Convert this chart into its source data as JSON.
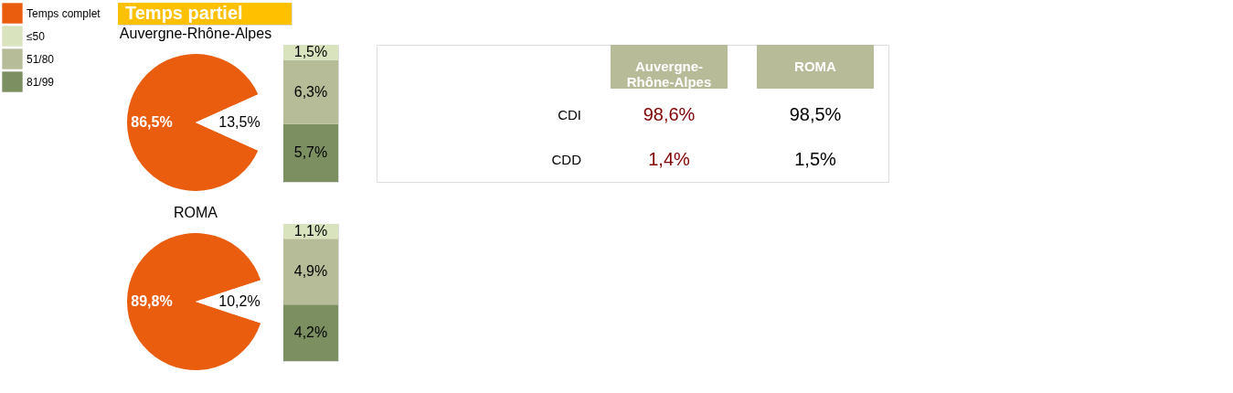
{
  "chart_data": [
    {
      "type": "pie",
      "title": "Auvergne-Rhône-Alpes",
      "annotations": [
        "Temps partiel"
      ],
      "categories": [
        "Temps complet",
        null
      ],
      "values": [
        86.5,
        13.5
      ],
      "colors": [
        "#ea5c0e",
        "#ffffff"
      ],
      "value_labels": [
        "86,5%",
        "13,5%"
      ],
      "legend": "left"
    },
    {
      "type": "bar",
      "stacked": true,
      "categories": [
        null
      ],
      "legend": "left",
      "series": [
        {
          "name": "81/99",
          "color": "#7b8f60",
          "values": [
            5.7
          ],
          "value_labels": [
            "5,7%"
          ]
        },
        {
          "name": "51/80",
          "color": "#b6bc98",
          "values": [
            6.3
          ],
          "value_labels": [
            "6,3%"
          ]
        },
        {
          "name": "≤50",
          "color": "#d9e4bf",
          "values": [
            1.5
          ],
          "value_labels": [
            "1,5%"
          ]
        }
      ]
    },
    {
      "type": "heatmap",
      "categories": [
        "Auvergne-Rhône-Alpes",
        "ROMA"
      ],
      "y_categories": [
        "CDI",
        "CDD"
      ],
      "cells": [
        [
          98.6,
          98.5
        ],
        [
          1.4,
          1.5
        ]
      ],
      "cell_labels": [
        [
          "98,6%",
          "98,5%"
        ],
        [
          "1,4%",
          "1,5%"
        ]
      ],
      "colors": [
        "#800000",
        "#000000"
      ]
    },
    {
      "type": "pie",
      "title": "ROMA",
      "categories": [
        null,
        null
      ],
      "values": [
        89.8,
        10.2
      ],
      "colors": [
        "#ea5c0e",
        "#ffffff"
      ],
      "value_labels": [
        "89,8%",
        "10,2%"
      ]
    },
    {
      "type": "bar",
      "stacked": true,
      "categories": [
        null
      ],
      "series": [
        {
          "color": "#7b8f60",
          "values": [
            4.2
          ],
          "value_labels": [
            "4,2%"
          ]
        },
        {
          "color": "#b6bc98",
          "values": [
            4.9
          ],
          "value_labels": [
            "4,9%"
          ]
        },
        {
          "color": "#d9e4bf",
          "values": [
            1.1
          ],
          "value_labels": [
            "1,1%"
          ]
        }
      ]
    }
  ]
}
